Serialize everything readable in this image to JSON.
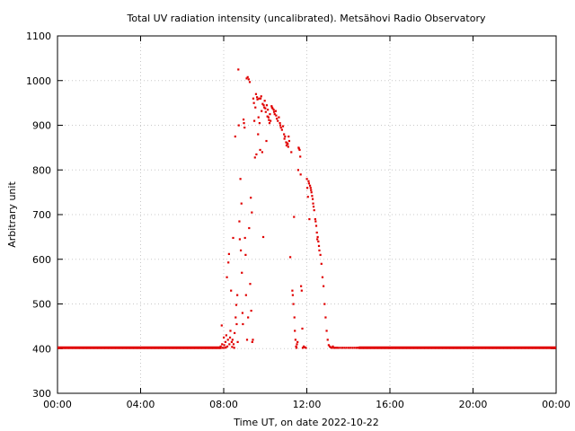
{
  "chart_data": {
    "type": "scatter",
    "title": "Total UV radiation intensity (uncalibrated). Metsähovi Radio Observatory",
    "xlabel": "Time UT, on date 2022-10-22",
    "ylabel": "Arbitrary unit",
    "xlim": [
      0,
      24
    ],
    "ylim": [
      300,
      1100
    ],
    "x_unit": "hours UT",
    "x_ticks": [
      0,
      4,
      8,
      12,
      16,
      20,
      24
    ],
    "x_tick_labels": [
      "00:00",
      "04:00",
      "08:00",
      "12:00",
      "16:00",
      "20:00",
      "00:00"
    ],
    "y_ticks": [
      300,
      400,
      500,
      600,
      700,
      800,
      900,
      1000,
      1100
    ],
    "y_tick_labels": [
      "300",
      "400",
      "500",
      "600",
      "700",
      "800",
      "900",
      "1000",
      "1100"
    ],
    "grid": true,
    "marker_color": "#e00000",
    "baseline": {
      "value": 402,
      "from": 0,
      "to": 7.9,
      "resume_from": 14.5,
      "resume_to": 24
    },
    "series": [
      {
        "points": [
          [
            7.85,
            405
          ],
          [
            7.9,
            452
          ],
          [
            7.92,
            410
          ],
          [
            7.95,
            402
          ],
          [
            8.0,
            425
          ],
          [
            8.02,
            408
          ],
          [
            8.05,
            402
          ],
          [
            8.08,
            415
          ],
          [
            8.1,
            403
          ],
          [
            8.12,
            430
          ],
          [
            8.15,
            560
          ],
          [
            8.17,
            405
          ],
          [
            8.2,
            420
          ],
          [
            8.22,
            593
          ],
          [
            8.25,
            612
          ],
          [
            8.27,
            410
          ],
          [
            8.3,
            425
          ],
          [
            8.32,
            440
          ],
          [
            8.35,
            530
          ],
          [
            8.38,
            415
          ],
          [
            8.4,
            404
          ],
          [
            8.42,
            420
          ],
          [
            8.45,
            648
          ],
          [
            8.47,
            410
          ],
          [
            8.5,
            402
          ],
          [
            8.52,
            435
          ],
          [
            8.55,
            875
          ],
          [
            8.57,
            470
          ],
          [
            8.6,
            498
          ],
          [
            8.62,
            455
          ],
          [
            8.65,
            520
          ],
          [
            8.67,
            415
          ],
          [
            8.7,
            1025
          ],
          [
            8.72,
            900
          ],
          [
            8.75,
            685
          ],
          [
            8.77,
            645
          ],
          [
            8.8,
            780
          ],
          [
            8.82,
            620
          ],
          [
            8.85,
            725
          ],
          [
            8.87,
            570
          ],
          [
            8.9,
            480
          ],
          [
            8.92,
            455
          ],
          [
            8.95,
            913
          ],
          [
            8.97,
            905
          ],
          [
            9.0,
            895
          ],
          [
            9.02,
            648
          ],
          [
            9.05,
            610
          ],
          [
            9.07,
            520
          ],
          [
            9.1,
            1005
          ],
          [
            9.12,
            420
          ],
          [
            9.15,
            1008
          ],
          [
            9.17,
            470
          ],
          [
            9.2,
            1003
          ],
          [
            9.22,
            670
          ],
          [
            9.25,
            997
          ],
          [
            9.27,
            545
          ],
          [
            9.3,
            738
          ],
          [
            9.32,
            485
          ],
          [
            9.35,
            705
          ],
          [
            9.37,
            415
          ],
          [
            9.4,
            420
          ],
          [
            9.42,
            960
          ],
          [
            9.45,
            950
          ],
          [
            9.47,
            910
          ],
          [
            9.5,
            828
          ],
          [
            9.52,
            940
          ],
          [
            9.55,
            970
          ],
          [
            9.57,
            835
          ],
          [
            9.6,
            963
          ],
          [
            9.62,
            958
          ],
          [
            9.65,
            880
          ],
          [
            9.67,
            918
          ],
          [
            9.7,
            960
          ],
          [
            9.72,
            905
          ],
          [
            9.75,
            845
          ],
          [
            9.77,
            960
          ],
          [
            9.8,
            965
          ],
          [
            9.82,
            932
          ],
          [
            9.85,
            840
          ],
          [
            9.87,
            948
          ],
          [
            9.9,
            650
          ],
          [
            9.92,
            945
          ],
          [
            9.95,
            940
          ],
          [
            9.97,
            955
          ],
          [
            10.0,
            938
          ],
          [
            10.02,
            930
          ],
          [
            10.05,
            865
          ],
          [
            10.07,
            945
          ],
          [
            10.1,
            920
          ],
          [
            10.12,
            935
          ],
          [
            10.15,
            918
          ],
          [
            10.17,
            912
          ],
          [
            10.2,
            905
          ],
          [
            10.22,
            925
          ],
          [
            10.25,
            910
          ],
          [
            10.3,
            943
          ],
          [
            10.32,
            940
          ],
          [
            10.35,
            938
          ],
          [
            10.4,
            935
          ],
          [
            10.42,
            930
          ],
          [
            10.45,
            925
          ],
          [
            10.5,
            932
          ],
          [
            10.52,
            922
          ],
          [
            10.55,
            915
          ],
          [
            10.6,
            910
          ],
          [
            10.65,
            918
          ],
          [
            10.7,
            905
          ],
          [
            10.72,
            900
          ],
          [
            10.75,
            895
          ],
          [
            10.8,
            890
          ],
          [
            10.85,
            898
          ],
          [
            10.9,
            880
          ],
          [
            10.92,
            870
          ],
          [
            10.95,
            875
          ],
          [
            11.0,
            862
          ],
          [
            11.02,
            855
          ],
          [
            11.05,
            860
          ],
          [
            11.08,
            858
          ],
          [
            11.1,
            852
          ],
          [
            11.12,
            875
          ],
          [
            11.15,
            865
          ],
          [
            11.2,
            605
          ],
          [
            11.25,
            840
          ],
          [
            11.3,
            530
          ],
          [
            11.32,
            520
          ],
          [
            11.35,
            500
          ],
          [
            11.38,
            695
          ],
          [
            11.4,
            470
          ],
          [
            11.42,
            440
          ],
          [
            11.45,
            420
          ],
          [
            11.48,
            405
          ],
          [
            11.5,
            402
          ],
          [
            11.52,
            410
          ],
          [
            11.55,
            415
          ],
          [
            11.58,
            800
          ],
          [
            11.6,
            850
          ],
          [
            11.62,
            848
          ],
          [
            11.65,
            845
          ],
          [
            11.68,
            830
          ],
          [
            11.7,
            790
          ],
          [
            11.72,
            540
          ],
          [
            11.75,
            530
          ],
          [
            11.78,
            445
          ],
          [
            11.8,
            402
          ],
          [
            11.85,
            405
          ],
          [
            11.9,
            403
          ],
          [
            11.95,
            402
          ],
          [
            12.0,
            780
          ],
          [
            12.02,
            760
          ],
          [
            12.05,
            740
          ],
          [
            12.08,
            775
          ],
          [
            12.1,
            770
          ],
          [
            12.12,
            690
          ],
          [
            12.15,
            765
          ],
          [
            12.18,
            760
          ],
          [
            12.2,
            755
          ],
          [
            12.22,
            750
          ],
          [
            12.25,
            742
          ],
          [
            12.28,
            735
          ],
          [
            12.3,
            725
          ],
          [
            12.32,
            718
          ],
          [
            12.35,
            710
          ],
          [
            12.4,
            690
          ],
          [
            12.42,
            685
          ],
          [
            12.45,
            675
          ],
          [
            12.48,
            660
          ],
          [
            12.5,
            645
          ],
          [
            12.52,
            650
          ],
          [
            12.55,
            640
          ],
          [
            12.58,
            630
          ],
          [
            12.6,
            620
          ],
          [
            12.65,
            610
          ],
          [
            12.7,
            590
          ],
          [
            12.75,
            560
          ],
          [
            12.8,
            540
          ],
          [
            12.85,
            500
          ],
          [
            12.9,
            470
          ],
          [
            12.95,
            440
          ],
          [
            13.0,
            420
          ],
          [
            13.05,
            408
          ],
          [
            13.1,
            405
          ],
          [
            13.15,
            403
          ],
          [
            13.2,
            402
          ],
          [
            13.25,
            405
          ],
          [
            13.3,
            402
          ],
          [
            13.35,
            402
          ],
          [
            13.4,
            402
          ],
          [
            13.45,
            402
          ],
          [
            13.5,
            402
          ],
          [
            13.6,
            402
          ],
          [
            13.7,
            402
          ],
          [
            13.8,
            402
          ],
          [
            13.9,
            402
          ],
          [
            14.0,
            402
          ],
          [
            14.1,
            402
          ],
          [
            14.2,
            402
          ],
          [
            14.3,
            402
          ],
          [
            14.4,
            402
          ],
          [
            14.45,
            402
          ],
          [
            14.5,
            402
          ]
        ]
      }
    ]
  }
}
